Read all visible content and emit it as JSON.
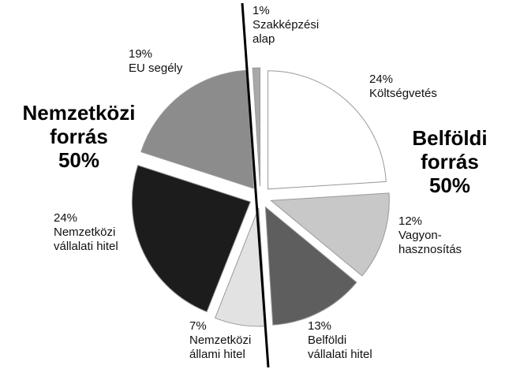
{
  "chart_data": {
    "type": "pie",
    "categories": [
      "Költségvetés",
      "Vagyon-\nhasznosítás",
      "Belföldi\nvállalati hitel",
      "Nemzetközi\nállami hitel",
      "Nemzetközi\nvállalati hitel",
      "EU segély",
      "Szakképzési\nalap"
    ],
    "values": [
      24,
      12,
      13,
      7,
      24,
      19,
      1
    ],
    "value_labels": [
      "24%",
      "12%",
      "13%",
      "7%",
      "24%",
      "19%",
      "1%"
    ],
    "colors": [
      "#ffffff",
      "#c8c8c8",
      "#5e5e5e",
      "#e2e2e2",
      "#1c1c1c",
      "#8c8c8c",
      "#a8a8a8"
    ],
    "annotations": [
      "Nemzetközi\nforrás\n50%",
      "Belföldi\nforrás\n50%"
    ]
  }
}
